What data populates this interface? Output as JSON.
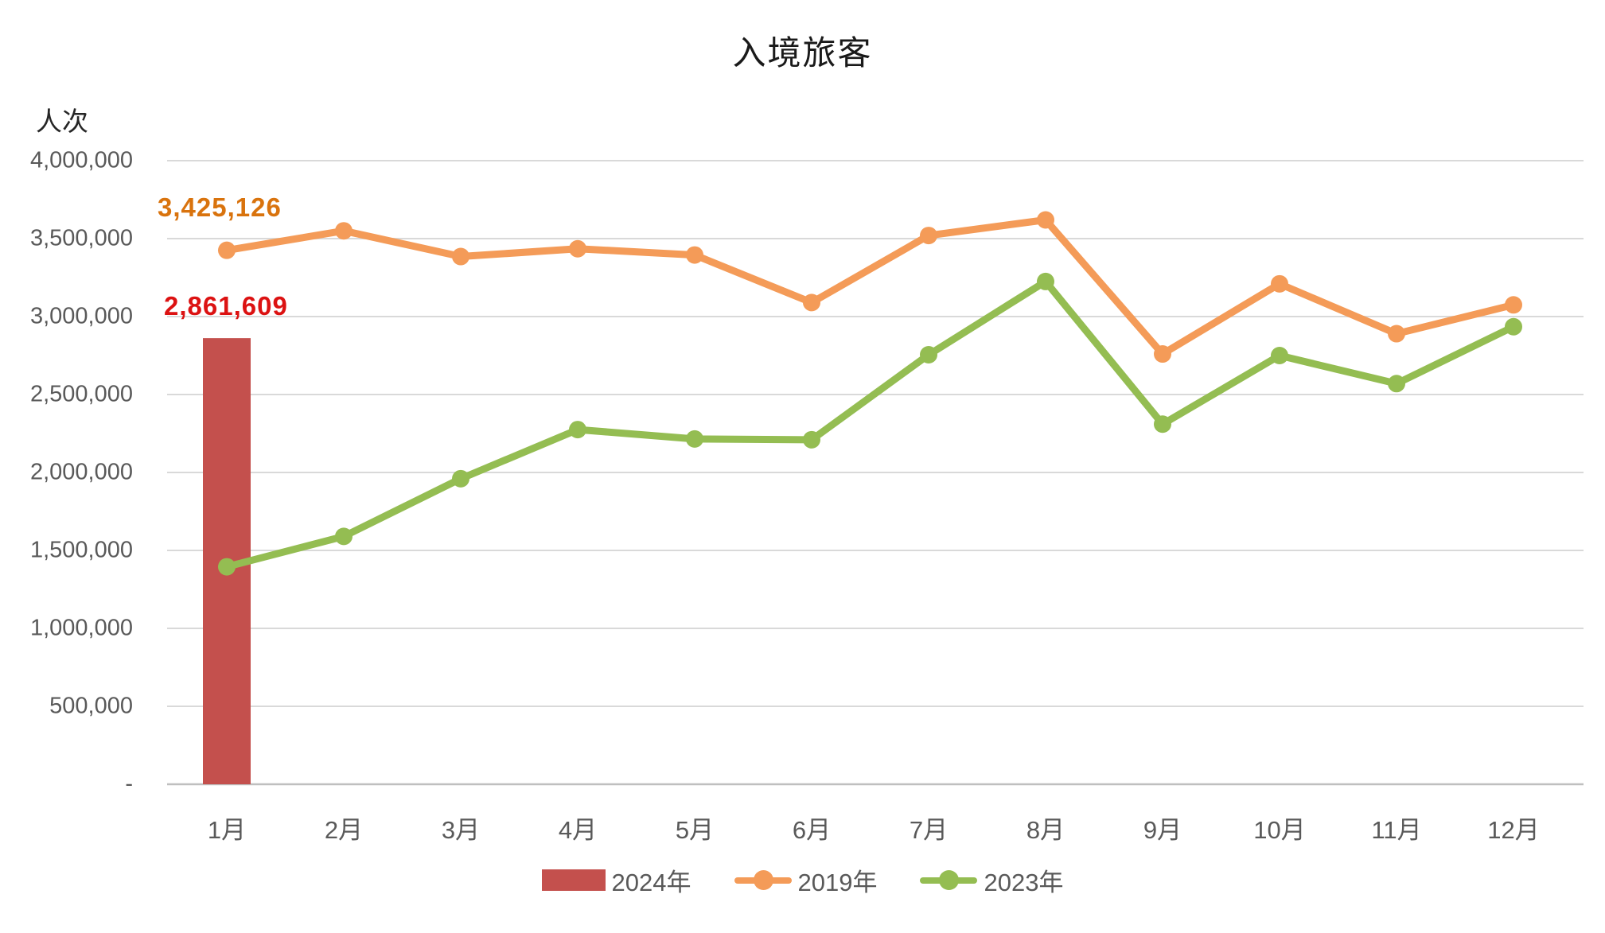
{
  "chart_data": {
    "type": "combo-bar-line",
    "title": "入境旅客",
    "unit_label": "人次",
    "categories": [
      "1月",
      "2月",
      "3月",
      "4月",
      "5月",
      "6月",
      "7月",
      "8月",
      "9月",
      "10月",
      "11月",
      "12月"
    ],
    "y_axis": {
      "min": 0,
      "max": 4000000,
      "tick_interval": 500000,
      "ticks": [
        {
          "value": 4000000,
          "label": "4,000,000"
        },
        {
          "value": 3500000,
          "label": "3,500,000"
        },
        {
          "value": 3000000,
          "label": "3,000,000"
        },
        {
          "value": 2500000,
          "label": "2,500,000"
        },
        {
          "value": 2000000,
          "label": "2,000,000"
        },
        {
          "value": 1500000,
          "label": "1,500,000"
        },
        {
          "value": 1000000,
          "label": "1,000,000"
        },
        {
          "value": 500000,
          "label": "500,000"
        },
        {
          "value": 0,
          "label": "-"
        }
      ]
    },
    "grid": true,
    "legend_position": "bottom",
    "series": [
      {
        "name": "2024年",
        "type": "bar",
        "color": "#C4504D",
        "values": [
          2861609,
          null,
          null,
          null,
          null,
          null,
          null,
          null,
          null,
          null,
          null,
          null
        ]
      },
      {
        "name": "2019年",
        "type": "line",
        "color": "#F49B58",
        "values": [
          3425126,
          3550000,
          3385000,
          3435000,
          3395000,
          3090000,
          3520000,
          3620000,
          2760000,
          3210000,
          2890000,
          3075000
        ]
      },
      {
        "name": "2023年",
        "type": "line",
        "color": "#94BD52",
        "values": [
          1395000,
          1590000,
          1960000,
          2275000,
          2215000,
          2210000,
          2755000,
          3225000,
          2310000,
          2750000,
          2570000,
          2935000
        ]
      }
    ],
    "data_labels": [
      {
        "series": "2019年",
        "category": "1月",
        "text": "3,425,126",
        "color": "#D9730D"
      },
      {
        "series": "2024年",
        "category": "1月",
        "text": "2,861,609",
        "color": "#DC1212"
      }
    ],
    "gridline_color": "#D9D9D9",
    "axis_line_color": "#BFBFBF"
  }
}
